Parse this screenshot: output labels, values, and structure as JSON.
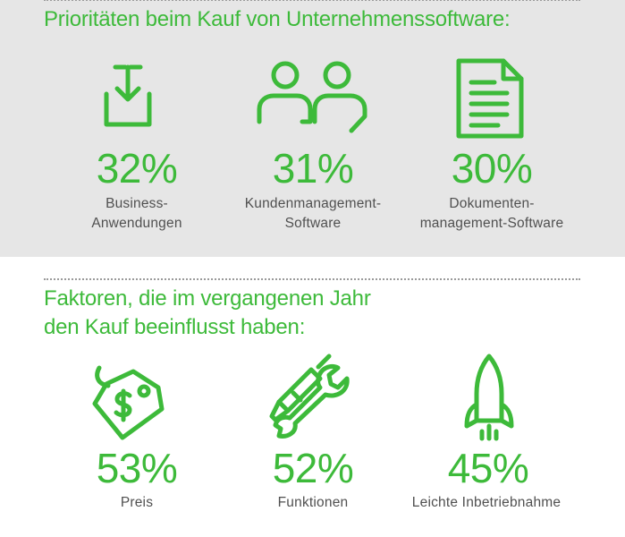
{
  "colors": {
    "accent": "#3dba3a",
    "panel": "#e6e6e6",
    "text": "#505050"
  },
  "section1": {
    "title": "Prioritäten beim Kauf von Unternehmenssoftware:",
    "items": [
      {
        "icon": "download-icon",
        "percent": "32%",
        "label": "Business-\nAnwendungen"
      },
      {
        "icon": "users-icon",
        "percent": "31%",
        "label": "Kundenmanagement-\nSoftware"
      },
      {
        "icon": "document-icon",
        "percent": "30%",
        "label": "Dokumenten-\nmanagement-Software"
      }
    ]
  },
  "section2": {
    "title_line1": "Faktoren, die im vergangenen Jahr",
    "title_line2": "den Kauf beeinflusst haben:",
    "items": [
      {
        "icon": "price-tag-icon",
        "percent": "53%",
        "label": "Preis"
      },
      {
        "icon": "tools-icon",
        "percent": "52%",
        "label": "Funktionen"
      },
      {
        "icon": "rocket-icon",
        "percent": "45%",
        "label": "Leichte Inbetriebnahme"
      }
    ]
  }
}
